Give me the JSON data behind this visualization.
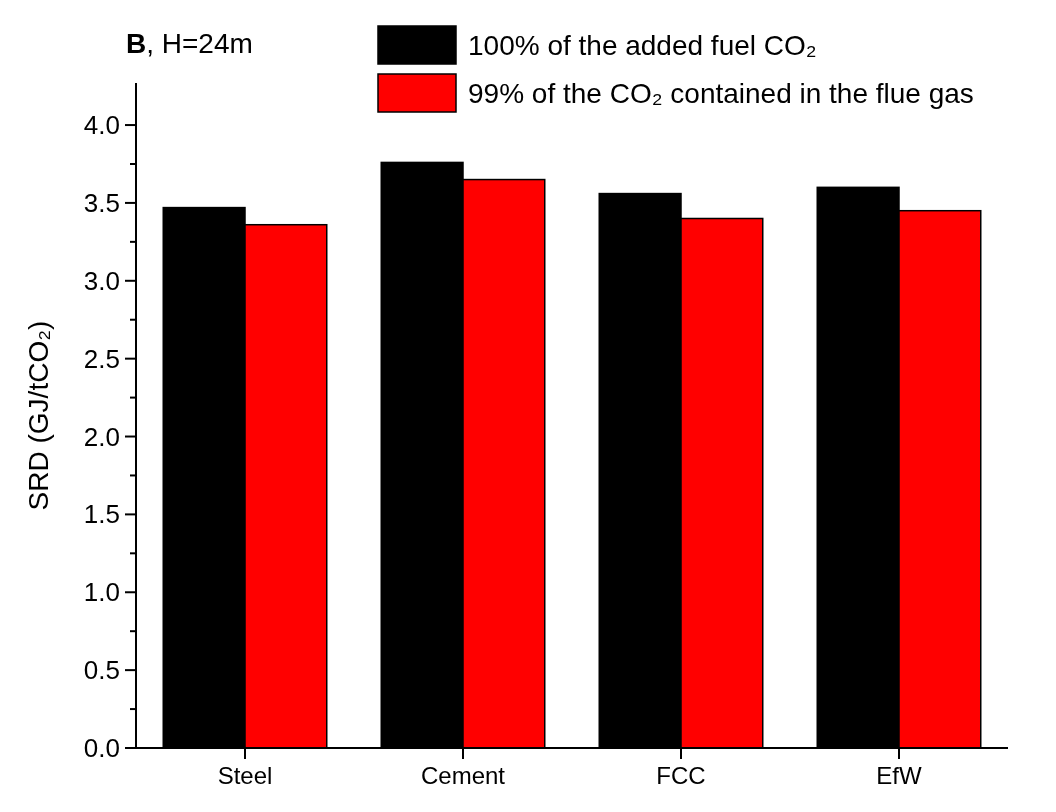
{
  "chart_data": {
    "type": "bar",
    "title": "B, H=24m",
    "ylabel": "SRD (GJ/tCO₂)",
    "categories": [
      "Steel",
      "Cement",
      "FCC",
      "EfW"
    ],
    "series": [
      {
        "name": "100% of the added fuel CO₂",
        "color": "#000000",
        "values": [
          3.47,
          3.76,
          3.56,
          3.6
        ]
      },
      {
        "name": "99% of the CO₂ contained in the flue gas",
        "color": "#ff0000",
        "values": [
          3.36,
          3.65,
          3.4,
          3.45
        ]
      }
    ],
    "ylim": [
      0,
      4.27
    ],
    "yticks": [
      {
        "value": 0,
        "label": "0.0"
      },
      {
        "value": 0.25,
        "label": null
      },
      0.5,
      {
        "value": 0.75,
        "label": null
      },
      {
        "value": 1,
        "label": "1.0"
      },
      {
        "value": 1.25,
        "label": null
      },
      1.5,
      {
        "value": 1.75,
        "label": null
      },
      {
        "value": 2,
        "label": "2.0"
      },
      {
        "value": 2.25,
        "label": null
      },
      2.5,
      {
        "value": 2.75,
        "label": null
      },
      {
        "value": 3,
        "label": "3.0"
      },
      {
        "value": 3.25,
        "label": null
      },
      3.5,
      {
        "value": 3.75,
        "label": null
      },
      {
        "value": 4,
        "label": "4.0"
      }
    ],
    "grid": false,
    "legend": "top right"
  }
}
